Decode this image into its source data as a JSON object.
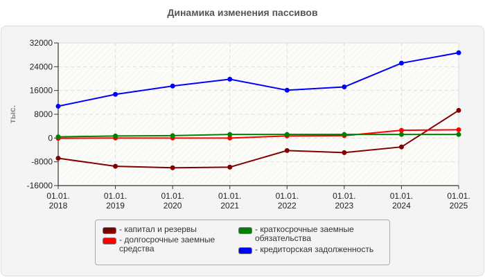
{
  "title": "Динамика изменения пассивов",
  "y_axis_label": "тыс.",
  "x_ticks": [
    {
      "l1": "01.01.",
      "l2": "2018"
    },
    {
      "l1": "01.01.",
      "l2": "2019"
    },
    {
      "l1": "01.01.",
      "l2": "2020"
    },
    {
      "l1": "01.01.",
      "l2": "2021"
    },
    {
      "l1": "01.01.",
      "l2": "2022"
    },
    {
      "l1": "01.01.",
      "l2": "2023"
    },
    {
      "l1": "01.01.",
      "l2": "2024"
    },
    {
      "l1": "01.01.",
      "l2": "2025"
    }
  ],
  "y_ticks": [
    "32000",
    "24000",
    "16000",
    "8000",
    "0",
    "-8000",
    "-16000"
  ],
  "legend": [
    {
      "label": "- капитал и резервы",
      "color": "#800000"
    },
    {
      "label": "- долгосрочные заемные средства",
      "color": "#ff0000"
    },
    {
      "label": "- краткосрочные заемные обязательства",
      "color": "#008000"
    },
    {
      "label": "- кредиторская задолженность",
      "color": "#0000ff"
    }
  ],
  "chart_data": {
    "type": "line",
    "title": "Динамика изменения пассивов",
    "xlabel": "",
    "ylabel": "тыс.",
    "ylim": [
      -16000,
      32000
    ],
    "y_ticks": [
      -16000,
      -8000,
      0,
      8000,
      16000,
      24000,
      32000
    ],
    "grid": true,
    "legend_position": "bottom",
    "x": [
      "01.01.2018",
      "01.01.2019",
      "01.01.2020",
      "01.01.2021",
      "01.01.2022",
      "01.01.2023",
      "01.01.2024",
      "01.01.2025"
    ],
    "series": [
      {
        "name": "капитал и резервы",
        "color": "#800000",
        "values": [
          -6800,
          -9500,
          -10000,
          -9800,
          -4200,
          -4900,
          -3000,
          9300
        ]
      },
      {
        "name": "долгосрочные заемные средства",
        "color": "#ff0000",
        "values": [
          -100,
          0,
          0,
          0,
          700,
          800,
          2600,
          2800
        ]
      },
      {
        "name": "краткосрочные заемные обязательства",
        "color": "#008000",
        "values": [
          400,
          700,
          800,
          1200,
          1200,
          1200,
          1200,
          1200
        ]
      },
      {
        "name": "кредиторская задолженность",
        "color": "#0000ff",
        "values": [
          10700,
          14700,
          17500,
          19800,
          16100,
          17200,
          25200,
          28700
        ]
      }
    ]
  }
}
